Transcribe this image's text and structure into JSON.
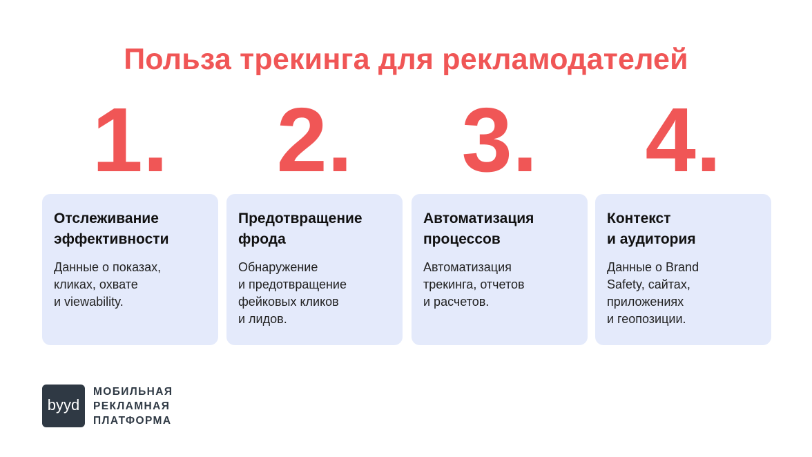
{
  "title": "Польза трекинга для рекламодателей",
  "cards": [
    {
      "num": "1.",
      "title": "Отслеживание\nэффективности",
      "text": "Данные о показах,\nкликах, охвате\nи viewability."
    },
    {
      "num": "2.",
      "title": "Предотвращение\nфрода",
      "text": "Обнаружение\nи предотвращение\nфейковых кликов\nи лидов."
    },
    {
      "num": "3.",
      "title": "Автоматизация\nпроцессов",
      "text": "Автоматизация\nтрекинга, отчетов\nи расчетов."
    },
    {
      "num": "4.",
      "title": "Контекст\nи аудитория",
      "text": "Данные о Brand\nSafety, сайтах,\nприложениях\nи геопозиции."
    }
  ],
  "footer": {
    "logo": "byyd",
    "brand": "МОБИЛЬНАЯ\nРЕКЛАМНАЯ\nПЛАТФОРМА"
  },
  "colors": {
    "accent": "#f05656",
    "card": "#e4eafb",
    "logo_bg": "#2f3944"
  }
}
